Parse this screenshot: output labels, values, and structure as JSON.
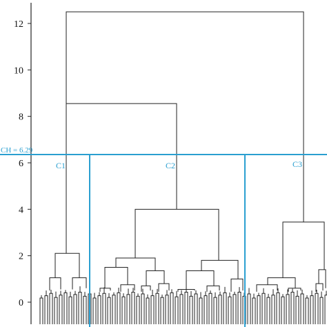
{
  "chart_data": {
    "type": "dendrogram",
    "title": "",
    "xlabel": "",
    "ylabel": "",
    "ylim": [
      0,
      13
    ],
    "yticks": [
      0,
      2,
      4,
      6,
      8,
      10,
      12
    ],
    "grid": false,
    "cut": {
      "label": "CH = 6.29",
      "value": 6.29
    },
    "clusters": [
      {
        "name": "C1",
        "leaves": [
          0,
          22
        ]
      },
      {
        "name": "C2",
        "leaves": [
          23,
          89
        ]
      },
      {
        "name": "C3",
        "leaves": [
          90,
          120
        ]
      }
    ],
    "merges": [
      {
        "name": "root",
        "height": 12.5
      },
      {
        "name": "C1+C2",
        "height": 8.55
      },
      {
        "name": "C1",
        "height": 2.1
      },
      {
        "name": "C2",
        "height": 4.0
      },
      {
        "name": "C3",
        "height": 3.45
      },
      {
        "name": "C2-left",
        "height": 1.9
      },
      {
        "name": "C2-right",
        "height": 1.8
      },
      {
        "name": "C3-left",
        "height": 1.05
      },
      {
        "name": "C3-right",
        "height": 1.4
      }
    ]
  }
}
